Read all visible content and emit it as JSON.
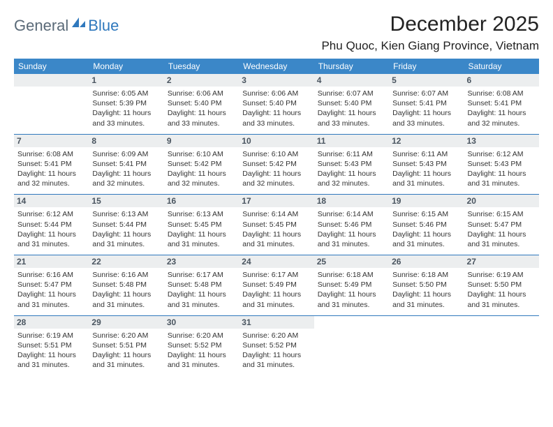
{
  "logo": {
    "general": "General",
    "blue": "Blue"
  },
  "title": "December 2025",
  "location": "Phu Quoc, Kien Giang Province, Vietnam",
  "colors": {
    "header_bg": "#3b87c8",
    "border": "#2f78bd",
    "daynum_bg": "#eceeef",
    "daynum_color": "#4a5560",
    "text": "#333333"
  },
  "day_headers": [
    "Sunday",
    "Monday",
    "Tuesday",
    "Wednesday",
    "Thursday",
    "Friday",
    "Saturday"
  ],
  "weeks": [
    [
      {
        "num": "",
        "sunrise": "",
        "sunset": "",
        "daylight1": "",
        "daylight2": ""
      },
      {
        "num": "1",
        "sunrise": "Sunrise: 6:05 AM",
        "sunset": "Sunset: 5:39 PM",
        "daylight1": "Daylight: 11 hours",
        "daylight2": "and 33 minutes."
      },
      {
        "num": "2",
        "sunrise": "Sunrise: 6:06 AM",
        "sunset": "Sunset: 5:40 PM",
        "daylight1": "Daylight: 11 hours",
        "daylight2": "and 33 minutes."
      },
      {
        "num": "3",
        "sunrise": "Sunrise: 6:06 AM",
        "sunset": "Sunset: 5:40 PM",
        "daylight1": "Daylight: 11 hours",
        "daylight2": "and 33 minutes."
      },
      {
        "num": "4",
        "sunrise": "Sunrise: 6:07 AM",
        "sunset": "Sunset: 5:40 PM",
        "daylight1": "Daylight: 11 hours",
        "daylight2": "and 33 minutes."
      },
      {
        "num": "5",
        "sunrise": "Sunrise: 6:07 AM",
        "sunset": "Sunset: 5:41 PM",
        "daylight1": "Daylight: 11 hours",
        "daylight2": "and 33 minutes."
      },
      {
        "num": "6",
        "sunrise": "Sunrise: 6:08 AM",
        "sunset": "Sunset: 5:41 PM",
        "daylight1": "Daylight: 11 hours",
        "daylight2": "and 32 minutes."
      }
    ],
    [
      {
        "num": "7",
        "sunrise": "Sunrise: 6:08 AM",
        "sunset": "Sunset: 5:41 PM",
        "daylight1": "Daylight: 11 hours",
        "daylight2": "and 32 minutes."
      },
      {
        "num": "8",
        "sunrise": "Sunrise: 6:09 AM",
        "sunset": "Sunset: 5:41 PM",
        "daylight1": "Daylight: 11 hours",
        "daylight2": "and 32 minutes."
      },
      {
        "num": "9",
        "sunrise": "Sunrise: 6:10 AM",
        "sunset": "Sunset: 5:42 PM",
        "daylight1": "Daylight: 11 hours",
        "daylight2": "and 32 minutes."
      },
      {
        "num": "10",
        "sunrise": "Sunrise: 6:10 AM",
        "sunset": "Sunset: 5:42 PM",
        "daylight1": "Daylight: 11 hours",
        "daylight2": "and 32 minutes."
      },
      {
        "num": "11",
        "sunrise": "Sunrise: 6:11 AM",
        "sunset": "Sunset: 5:43 PM",
        "daylight1": "Daylight: 11 hours",
        "daylight2": "and 32 minutes."
      },
      {
        "num": "12",
        "sunrise": "Sunrise: 6:11 AM",
        "sunset": "Sunset: 5:43 PM",
        "daylight1": "Daylight: 11 hours",
        "daylight2": "and 31 minutes."
      },
      {
        "num": "13",
        "sunrise": "Sunrise: 6:12 AM",
        "sunset": "Sunset: 5:43 PM",
        "daylight1": "Daylight: 11 hours",
        "daylight2": "and 31 minutes."
      }
    ],
    [
      {
        "num": "14",
        "sunrise": "Sunrise: 6:12 AM",
        "sunset": "Sunset: 5:44 PM",
        "daylight1": "Daylight: 11 hours",
        "daylight2": "and 31 minutes."
      },
      {
        "num": "15",
        "sunrise": "Sunrise: 6:13 AM",
        "sunset": "Sunset: 5:44 PM",
        "daylight1": "Daylight: 11 hours",
        "daylight2": "and 31 minutes."
      },
      {
        "num": "16",
        "sunrise": "Sunrise: 6:13 AM",
        "sunset": "Sunset: 5:45 PM",
        "daylight1": "Daylight: 11 hours",
        "daylight2": "and 31 minutes."
      },
      {
        "num": "17",
        "sunrise": "Sunrise: 6:14 AM",
        "sunset": "Sunset: 5:45 PM",
        "daylight1": "Daylight: 11 hours",
        "daylight2": "and 31 minutes."
      },
      {
        "num": "18",
        "sunrise": "Sunrise: 6:14 AM",
        "sunset": "Sunset: 5:46 PM",
        "daylight1": "Daylight: 11 hours",
        "daylight2": "and 31 minutes."
      },
      {
        "num": "19",
        "sunrise": "Sunrise: 6:15 AM",
        "sunset": "Sunset: 5:46 PM",
        "daylight1": "Daylight: 11 hours",
        "daylight2": "and 31 minutes."
      },
      {
        "num": "20",
        "sunrise": "Sunrise: 6:15 AM",
        "sunset": "Sunset: 5:47 PM",
        "daylight1": "Daylight: 11 hours",
        "daylight2": "and 31 minutes."
      }
    ],
    [
      {
        "num": "21",
        "sunrise": "Sunrise: 6:16 AM",
        "sunset": "Sunset: 5:47 PM",
        "daylight1": "Daylight: 11 hours",
        "daylight2": "and 31 minutes."
      },
      {
        "num": "22",
        "sunrise": "Sunrise: 6:16 AM",
        "sunset": "Sunset: 5:48 PM",
        "daylight1": "Daylight: 11 hours",
        "daylight2": "and 31 minutes."
      },
      {
        "num": "23",
        "sunrise": "Sunrise: 6:17 AM",
        "sunset": "Sunset: 5:48 PM",
        "daylight1": "Daylight: 11 hours",
        "daylight2": "and 31 minutes."
      },
      {
        "num": "24",
        "sunrise": "Sunrise: 6:17 AM",
        "sunset": "Sunset: 5:49 PM",
        "daylight1": "Daylight: 11 hours",
        "daylight2": "and 31 minutes."
      },
      {
        "num": "25",
        "sunrise": "Sunrise: 6:18 AM",
        "sunset": "Sunset: 5:49 PM",
        "daylight1": "Daylight: 11 hours",
        "daylight2": "and 31 minutes."
      },
      {
        "num": "26",
        "sunrise": "Sunrise: 6:18 AM",
        "sunset": "Sunset: 5:50 PM",
        "daylight1": "Daylight: 11 hours",
        "daylight2": "and 31 minutes."
      },
      {
        "num": "27",
        "sunrise": "Sunrise: 6:19 AM",
        "sunset": "Sunset: 5:50 PM",
        "daylight1": "Daylight: 11 hours",
        "daylight2": "and 31 minutes."
      }
    ],
    [
      {
        "num": "28",
        "sunrise": "Sunrise: 6:19 AM",
        "sunset": "Sunset: 5:51 PM",
        "daylight1": "Daylight: 11 hours",
        "daylight2": "and 31 minutes."
      },
      {
        "num": "29",
        "sunrise": "Sunrise: 6:20 AM",
        "sunset": "Sunset: 5:51 PM",
        "daylight1": "Daylight: 11 hours",
        "daylight2": "and 31 minutes."
      },
      {
        "num": "30",
        "sunrise": "Sunrise: 6:20 AM",
        "sunset": "Sunset: 5:52 PM",
        "daylight1": "Daylight: 11 hours",
        "daylight2": "and 31 minutes."
      },
      {
        "num": "31",
        "sunrise": "Sunrise: 6:20 AM",
        "sunset": "Sunset: 5:52 PM",
        "daylight1": "Daylight: 11 hours",
        "daylight2": "and 31 minutes."
      },
      {
        "num": "",
        "sunrise": "",
        "sunset": "",
        "daylight1": "",
        "daylight2": ""
      },
      {
        "num": "",
        "sunrise": "",
        "sunset": "",
        "daylight1": "",
        "daylight2": ""
      },
      {
        "num": "",
        "sunrise": "",
        "sunset": "",
        "daylight1": "",
        "daylight2": ""
      }
    ]
  ]
}
